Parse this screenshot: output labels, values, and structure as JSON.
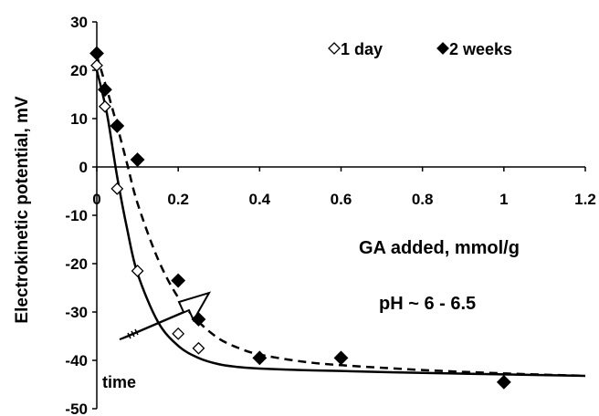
{
  "chart_data": {
    "type": "scatter",
    "title": "",
    "xlabel": "",
    "ylabel": "Electrokinetic potential, mV",
    "xlim": [
      0,
      1.2
    ],
    "ylim": [
      -50,
      30
    ],
    "x_ticks": [
      "0",
      "0.2",
      "0.4",
      "0.6",
      "0.8",
      "1",
      "1.2"
    ],
    "y_ticks": [
      "30",
      "20",
      "10",
      "0",
      "-10",
      "-20",
      "-30",
      "-40",
      "-50"
    ],
    "x_tick_values": [
      0,
      0.2,
      0.4,
      0.6,
      0.8,
      1.0,
      1.2
    ],
    "y_tick_values": [
      30,
      20,
      10,
      0,
      -10,
      -20,
      -30,
      -40,
      -50
    ],
    "legend_position": "top-right",
    "series": [
      {
        "name": "1 day",
        "marker": "open-diamond",
        "line": "solid",
        "color": "#000000",
        "x": [
          0.0,
          0.02,
          0.05,
          0.1,
          0.2,
          0.25,
          0.4
        ],
        "y": [
          21,
          12.5,
          -4.5,
          -21.5,
          -34.5,
          -37.5,
          -39.5
        ],
        "fit_x": [
          0.0,
          0.025,
          0.05,
          0.075,
          0.1,
          0.15,
          0.2,
          0.25,
          0.3,
          0.35,
          0.4,
          0.5,
          0.6,
          0.8,
          1.0,
          1.2
        ],
        "fit_y": [
          20,
          11,
          -2,
          -13,
          -22,
          -32,
          -37,
          -39.5,
          -40.8,
          -41.4,
          -41.7,
          -42,
          -42.2,
          -42.6,
          -42.9,
          -43.2
        ]
      },
      {
        "name": "2 weeks",
        "marker": "filled-diamond",
        "line": "dashed",
        "color": "#000000",
        "x": [
          0.0,
          0.02,
          0.05,
          0.1,
          0.2,
          0.25,
          0.4,
          0.6,
          1.0
        ],
        "y": [
          23.5,
          16,
          8.5,
          1.5,
          -23.5,
          -31.5,
          -39.5,
          -39.5,
          -44.5
        ],
        "fit_x": [
          0.0,
          0.025,
          0.05,
          0.075,
          0.1,
          0.15,
          0.2,
          0.25,
          0.3,
          0.35,
          0.4,
          0.5,
          0.6,
          0.8,
          1.0,
          1.2
        ],
        "fit_y": [
          23,
          16,
          8.5,
          0.5,
          -7.5,
          -19,
          -27,
          -32,
          -35.5,
          -37.5,
          -38.8,
          -40.2,
          -41,
          -42,
          -42.7,
          -43.2
        ]
      }
    ],
    "annotations": {
      "x_axis_title": "GA  added, mmol/g",
      "condition": "pH ~ 6 - 6.5",
      "arrow_label": "time"
    }
  }
}
